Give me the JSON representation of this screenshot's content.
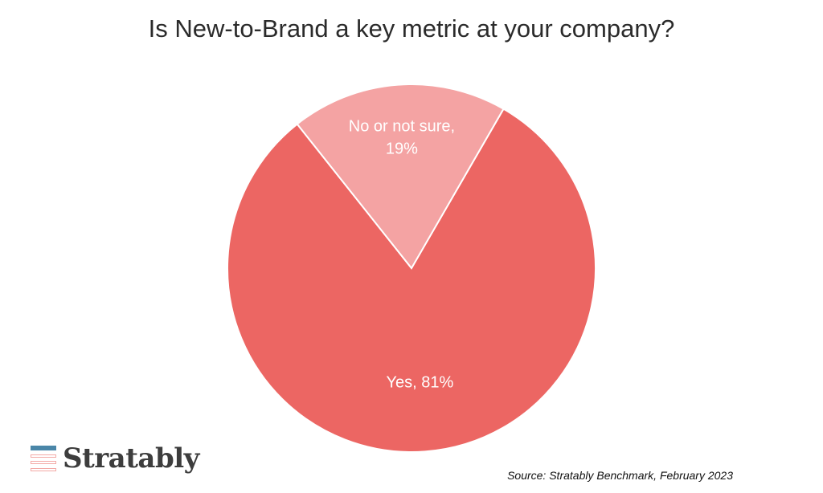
{
  "chart_data": {
    "type": "pie",
    "title": "Is New-to-Brand a key metric at your company?",
    "slices": [
      {
        "name": "Yes",
        "value": 81,
        "label_line1": "Yes, 81%",
        "label_line2": "",
        "color": "#ec6663"
      },
      {
        "name": "No or not sure",
        "value": 19,
        "label_line1": "No or not sure,",
        "label_line2": "19%",
        "color": "#f4a3a3"
      }
    ],
    "start_angle_deg": 30,
    "legend": "none"
  },
  "footer": {
    "logo_text": "Stratably",
    "logo_colors": [
      "#4a86a8",
      "#f3b3b0",
      "#f3b3b0",
      "#f3b3b0"
    ],
    "source": "Source: Stratably Benchmark, February 2023"
  }
}
